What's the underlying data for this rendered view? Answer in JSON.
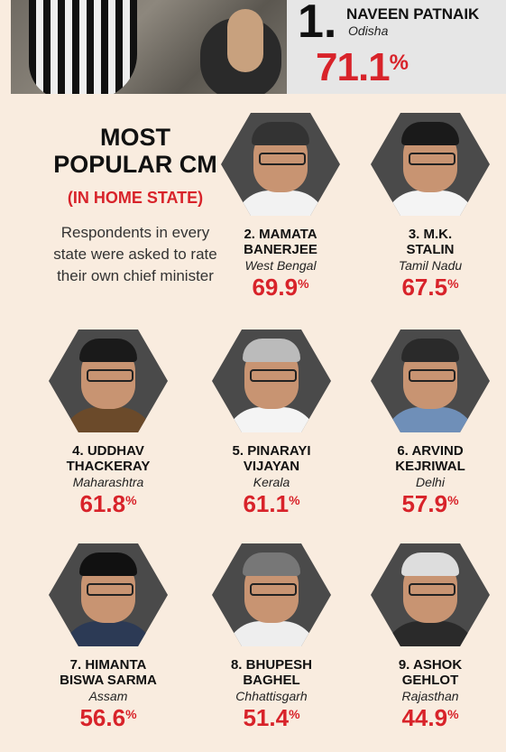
{
  "top": {
    "rank": "1.",
    "name": "NAVEEN PATNAIK",
    "state": "Odisha",
    "value": "71.1",
    "unit": "%"
  },
  "headline": {
    "line1": "MOST",
    "line2": "POPULAR CM",
    "subhead": "(IN HOME STATE)",
    "description": "Respondents in every state were asked to rate their own chief minister"
  },
  "rankings": [
    {
      "rank": "2.",
      "name": "MAMATA\nBANERJEE",
      "state": "West Bengal",
      "value": "69.9",
      "unit": "%",
      "clothes": "#f2f2f2",
      "hair": "#333"
    },
    {
      "rank": "3.",
      "name": "M.K.\nSTALIN",
      "state": "Tamil Nadu",
      "value": "67.5",
      "unit": "%",
      "clothes": "#f4f4f4",
      "hair": "#1a1a1a"
    },
    {
      "rank": "4.",
      "name": "UDDHAV\nTHACKERAY",
      "state": "Maharashtra",
      "value": "61.8",
      "unit": "%",
      "clothes": "#6b4a2a",
      "hair": "#1a1a1a"
    },
    {
      "rank": "5.",
      "name": "PINARAYI\nVIJAYAN",
      "state": "Kerala",
      "value": "61.1",
      "unit": "%",
      "clothes": "#f4f4f4",
      "hair": "#bbb"
    },
    {
      "rank": "6.",
      "name": "ARVIND\nKEJRIWAL",
      "state": "Delhi",
      "value": "57.9",
      "unit": "%",
      "clothes": "#6f8fb8",
      "hair": "#2a2a2a"
    },
    {
      "rank": "7.",
      "name": "HIMANTA\nBISWA SARMA",
      "state": "Assam",
      "value": "56.6",
      "unit": "%",
      "clothes": "#2c3a55",
      "hair": "#111"
    },
    {
      "rank": "8.",
      "name": "BHUPESH\nBAGHEL",
      "state": "Chhattisgarh",
      "value": "51.4",
      "unit": "%",
      "clothes": "#eee",
      "hair": "#777"
    },
    {
      "rank": "9.",
      "name": "ASHOK\nGEHLOT",
      "state": "Rajasthan",
      "value": "44.9",
      "unit": "%",
      "clothes": "#2a2a2a",
      "hair": "#ddd"
    }
  ]
}
